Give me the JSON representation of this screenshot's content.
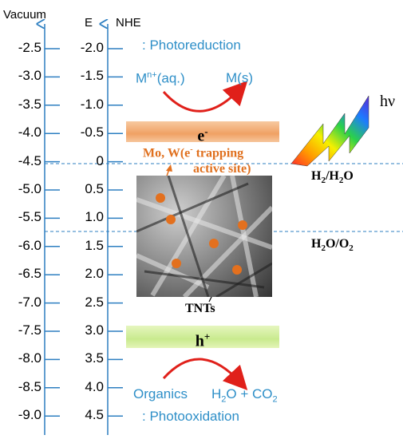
{
  "axes": {
    "vacuum_label": "Vacuum",
    "e_label": "E",
    "nhe_label": "NHE",
    "vacuum_ticks": [
      "-2.5",
      "-3.0",
      "-3.5",
      "-4.0",
      "-4.5",
      "-5.0",
      "-5.5",
      "-6.0",
      "-6.5",
      "-7.0",
      "-7.5",
      "-8.0",
      "-8.5",
      "-9.0"
    ],
    "nhe_ticks": [
      "-2.0",
      "-1.5",
      "-1.0",
      "-0.5",
      "0",
      "0.5",
      "1.0",
      "1.5",
      "2.0",
      "2.5",
      "3.0",
      "3.5",
      "4.0",
      "4.5"
    ]
  },
  "top": {
    "photoreduction": ": Photoreduction",
    "reactant_base": "M",
    "reactant_sup": "n+",
    "reactant_tail": "(aq.)",
    "product": "M(s)"
  },
  "bands": {
    "electron_base": "e",
    "electron_sup": "-",
    "hole_base": "h",
    "hole_sup": "+"
  },
  "light": {
    "label": "hν"
  },
  "annotations": {
    "dopants_line1_pre": "Mo, W(e",
    "dopants_line1_sup": "-",
    "dopants_line1_post": " trapping",
    "dopants_line2": "active site)",
    "tnts": "TNTs"
  },
  "couples": {
    "h2_a": "H",
    "h2_sub": "2",
    "h2_b": "/H",
    "h2_sub2": "2",
    "h2_c": "O",
    "o2_a": "H",
    "o2_sub": "2",
    "o2_b": "O/O",
    "o2_sub2": "2"
  },
  "bottom": {
    "organics": "Organics",
    "prod_a": "H",
    "prod_sub": "2",
    "prod_b": "O + CO",
    "prod_sub2": "2",
    "photooxidation": ": Photooxidation"
  },
  "colors": {
    "axis": "#2e7fc1",
    "dashed": "#2e7fc1",
    "arrow_red": "#e0201a",
    "dot_orange": "#e3701e",
    "text_blue": "#2e8fc8",
    "text_orange": "#e0701e"
  }
}
